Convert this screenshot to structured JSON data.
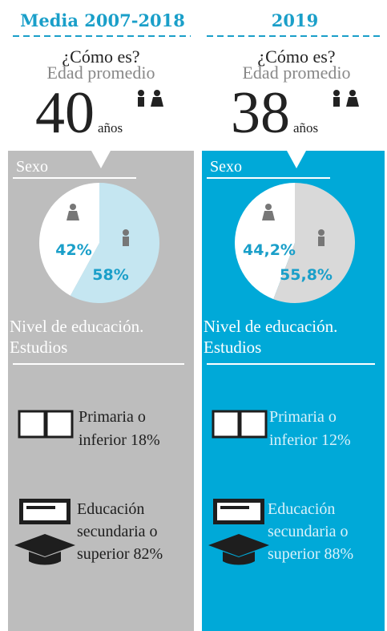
{
  "columns": [
    {
      "header": "Media 2007-2018",
      "question": "¿Cómo es?",
      "subtitle": "Edad promedio",
      "age": 40,
      "age_unit": "años",
      "sex_label": "Sexo",
      "pie": {
        "values": [
          42,
          58
        ],
        "value_labels": [
          "42%",
          "58%"
        ]
      },
      "education_label": [
        "Nivel de educación.",
        "Estudios"
      ],
      "education": [
        {
          "lines": [
            "Primaria o",
            "inferior 18%"
          ]
        },
        {
          "lines": [
            "Educación",
            "secundaria o",
            "superior 82%"
          ]
        }
      ]
    },
    {
      "header": "2019",
      "question": "¿Cómo es?",
      "subtitle": "Edad promedio",
      "age": 38,
      "age_unit": "años",
      "sex_label": "Sexo",
      "pie": {
        "values": [
          44.2,
          55.8
        ],
        "value_labels": [
          "44,2%",
          "55,8%"
        ]
      },
      "education_label": [
        "Nivel de educación.",
        "Estudios"
      ],
      "education": [
        {
          "lines": [
            "Primaria o",
            "inferior 12%"
          ]
        },
        {
          "lines": [
            "Educación",
            "secundaria o",
            "superior 88%"
          ]
        }
      ]
    }
  ]
}
